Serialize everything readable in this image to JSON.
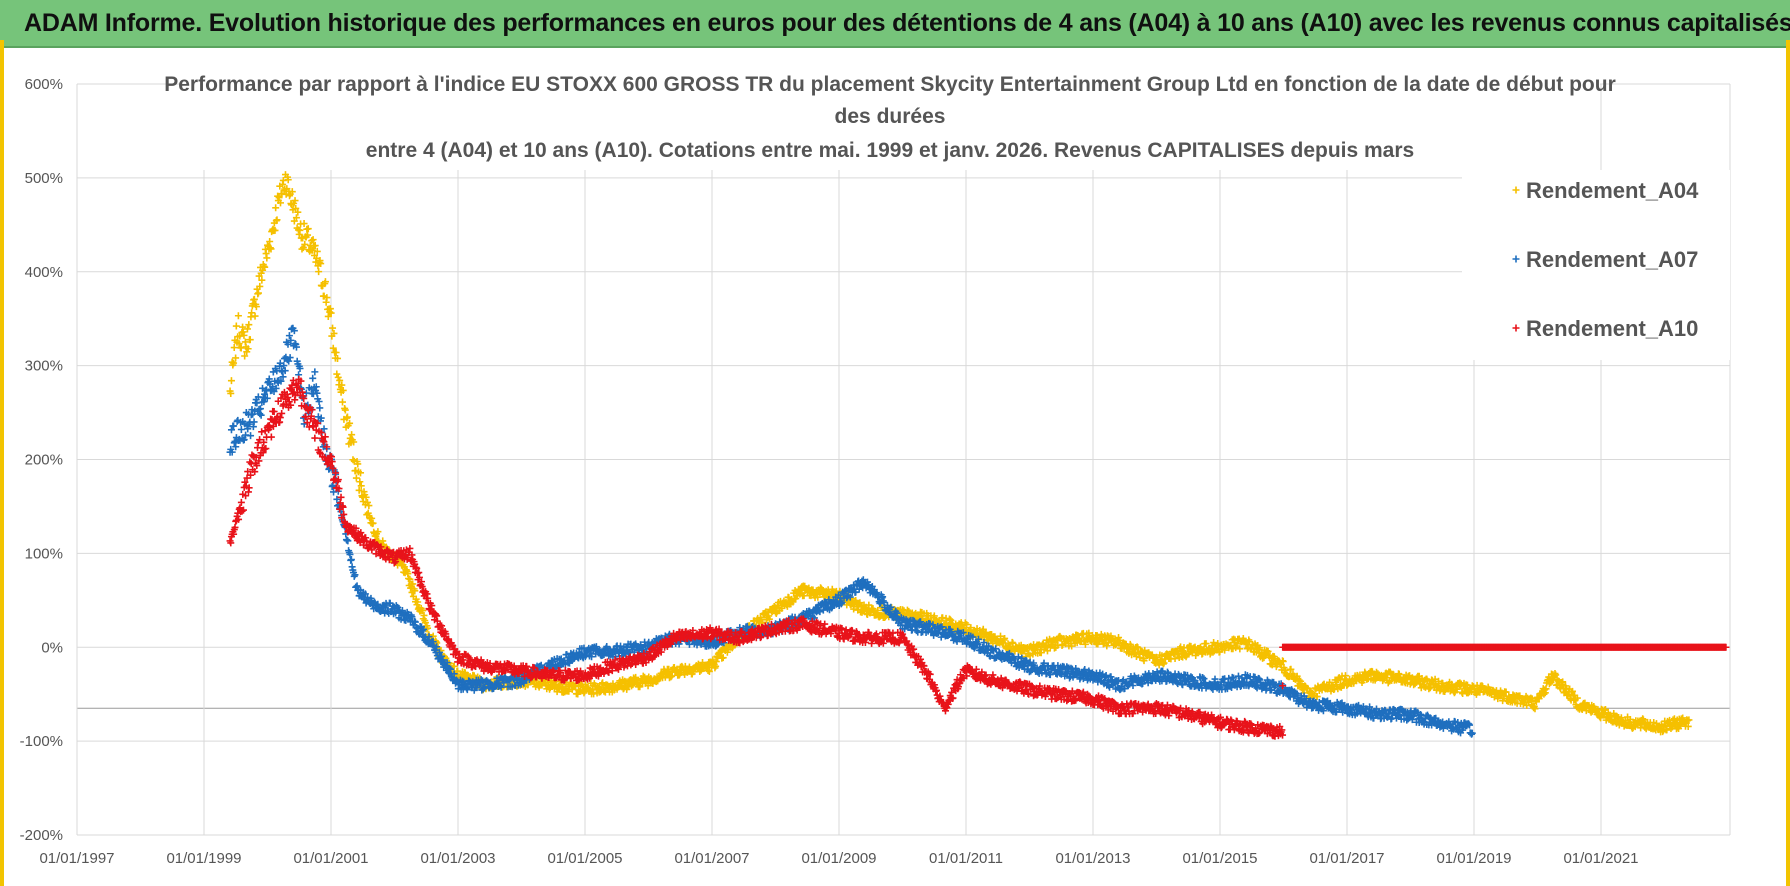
{
  "header": {
    "banner_title": "ADAM Informe. Evolution historique des performances en euros pour des détentions de 4 ans (A04) à 10 ans (A10) avec les revenus connus capitalisés"
  },
  "chart_data": {
    "type": "scatter",
    "title_lines": [
      "Performance par rapport à l'indice EU STOXX 600 GROSS TR  du placement Skycity Entertainment Group Ltd en fonction de la date de début pour",
      "des durées",
      "entre 4 (A04) et 10 ans (A10).  Cotations entre mai. 1999 et janv. 2026. Revenus CAPITALISES depuis mars"
    ],
    "xlabel": "",
    "ylabel": "",
    "x_axis": "date",
    "xlim": [
      "1997-01-01",
      "2022-12-31"
    ],
    "x_ticks": [
      "01/01/1997",
      "01/01/1999",
      "01/01/2001",
      "01/01/2003",
      "01/01/2005",
      "01/01/2007",
      "01/01/2009",
      "01/01/2011",
      "01/01/2013",
      "01/01/2015",
      "01/01/2017",
      "01/01/2019",
      "01/01/2021"
    ],
    "ylim": [
      -200,
      600
    ],
    "y_ticks": [
      "600%",
      "500%",
      "400%",
      "300%",
      "200%",
      "100%",
      "0%",
      "-100%",
      "-200%"
    ],
    "grid": true,
    "legend_position": "top-right",
    "series": [
      {
        "name": "Rendement_A04",
        "color": "#f5c000",
        "points": [
          [
            "1999-06-01",
            270
          ],
          [
            "1999-07-15",
            340
          ],
          [
            "1999-09-01",
            320
          ],
          [
            "1999-10-15",
            360
          ],
          [
            "1999-12-01",
            400
          ],
          [
            "2000-01-15",
            430
          ],
          [
            "2000-03-01",
            470
          ],
          [
            "2000-04-15",
            500
          ],
          [
            "2000-06-01",
            470
          ],
          [
            "2000-07-15",
            440
          ],
          [
            "2000-09-01",
            430
          ],
          [
            "2000-10-15",
            410
          ],
          [
            "2000-12-01",
            380
          ],
          [
            "2001-01-15",
            330
          ],
          [
            "2001-03-01",
            270
          ],
          [
            "2001-04-15",
            230
          ],
          [
            "2001-06-01",
            190
          ],
          [
            "2001-07-15",
            160
          ],
          [
            "2001-09-01",
            130
          ],
          [
            "2001-10-15",
            110
          ],
          [
            "2001-12-01",
            100
          ],
          [
            "2002-02-01",
            90
          ],
          [
            "2002-04-01",
            70
          ],
          [
            "2002-06-01",
            40
          ],
          [
            "2002-08-01",
            10
          ],
          [
            "2002-10-01",
            -10
          ],
          [
            "2003-01-01",
            -30
          ],
          [
            "2003-06-01",
            -40
          ],
          [
            "2004-01-01",
            -35
          ],
          [
            "2004-06-01",
            -40
          ],
          [
            "2005-01-01",
            -45
          ],
          [
            "2005-06-01",
            -42
          ],
          [
            "2006-01-01",
            -35
          ],
          [
            "2006-06-01",
            -25
          ],
          [
            "2007-01-01",
            -20
          ],
          [
            "2007-06-01",
            10
          ],
          [
            "2008-01-01",
            40
          ],
          [
            "2008-06-01",
            60
          ],
          [
            "2009-01-01",
            55
          ],
          [
            "2009-06-01",
            40
          ],
          [
            "2010-01-01",
            35
          ],
          [
            "2010-06-01",
            30
          ],
          [
            "2011-01-01",
            20
          ],
          [
            "2011-06-01",
            10
          ],
          [
            "2012-01-01",
            -5
          ],
          [
            "2012-06-01",
            5
          ],
          [
            "2013-01-01",
            10
          ],
          [
            "2013-06-01",
            5
          ],
          [
            "2014-01-01",
            -15
          ],
          [
            "2014-06-01",
            -5
          ],
          [
            "2015-01-01",
            0
          ],
          [
            "2015-06-01",
            5
          ],
          [
            "2016-01-01",
            -20
          ],
          [
            "2016-06-01",
            -50
          ],
          [
            "2017-01-01",
            -35
          ],
          [
            "2017-06-01",
            -30
          ],
          [
            "2018-01-01",
            -35
          ],
          [
            "2018-06-01",
            -40
          ],
          [
            "2019-01-01",
            -45
          ],
          [
            "2019-06-01",
            -50
          ],
          [
            "2020-01-01",
            -60
          ],
          [
            "2020-04-01",
            -30
          ],
          [
            "2020-09-01",
            -60
          ],
          [
            "2021-01-01",
            -70
          ],
          [
            "2021-06-01",
            -80
          ],
          [
            "2022-01-01",
            -85
          ],
          [
            "2022-06-01",
            -78
          ]
        ]
      },
      {
        "name": "Rendement_A07",
        "color": "#1f6fbf",
        "points": [
          [
            "1999-06-01",
            220
          ],
          [
            "1999-08-01",
            230
          ],
          [
            "1999-10-01",
            240
          ],
          [
            "1999-12-01",
            260
          ],
          [
            "2000-02-01",
            280
          ],
          [
            "2000-04-01",
            300
          ],
          [
            "2000-06-01",
            330
          ],
          [
            "2000-08-01",
            250
          ],
          [
            "2000-10-01",
            280
          ],
          [
            "2000-12-01",
            210
          ],
          [
            "2001-02-01",
            170
          ],
          [
            "2001-04-01",
            120
          ],
          [
            "2001-06-01",
            60
          ],
          [
            "2001-09-01",
            45
          ],
          [
            "2002-01-01",
            40
          ],
          [
            "2002-04-01",
            30
          ],
          [
            "2002-08-01",
            5
          ],
          [
            "2003-01-01",
            -40
          ],
          [
            "2003-06-01",
            -40
          ],
          [
            "2004-01-01",
            -35
          ],
          [
            "2004-06-01",
            -20
          ],
          [
            "2005-01-01",
            -5
          ],
          [
            "2005-06-01",
            -5
          ],
          [
            "2006-01-01",
            0
          ],
          [
            "2006-06-01",
            10
          ],
          [
            "2007-01-01",
            5
          ],
          [
            "2007-06-01",
            15
          ],
          [
            "2008-01-01",
            20
          ],
          [
            "2008-06-01",
            30
          ],
          [
            "2009-01-01",
            50
          ],
          [
            "2009-06-01",
            70
          ],
          [
            "2010-01-01",
            25
          ],
          [
            "2010-06-01",
            20
          ],
          [
            "2011-01-01",
            10
          ],
          [
            "2011-06-01",
            -5
          ],
          [
            "2012-01-01",
            -20
          ],
          [
            "2012-06-01",
            -25
          ],
          [
            "2013-01-01",
            -30
          ],
          [
            "2013-06-01",
            -40
          ],
          [
            "2014-01-01",
            -30
          ],
          [
            "2014-06-01",
            -35
          ],
          [
            "2015-01-01",
            -40
          ],
          [
            "2015-06-01",
            -35
          ],
          [
            "2016-01-01",
            -45
          ],
          [
            "2016-06-01",
            -60
          ],
          [
            "2017-01-01",
            -65
          ],
          [
            "2017-06-01",
            -70
          ],
          [
            "2018-01-01",
            -72
          ],
          [
            "2018-06-01",
            -80
          ],
          [
            "2019-01-01",
            -88
          ]
        ]
      },
      {
        "name": "Rendement_A10",
        "color": "#e8131a",
        "points": [
          [
            "1999-06-01",
            110
          ],
          [
            "1999-08-01",
            150
          ],
          [
            "1999-10-01",
            190
          ],
          [
            "2000-01-01",
            230
          ],
          [
            "2000-04-01",
            260
          ],
          [
            "2000-07-01",
            280
          ],
          [
            "2000-10-01",
            230
          ],
          [
            "2001-01-01",
            200
          ],
          [
            "2001-04-01",
            130
          ],
          [
            "2001-08-01",
            110
          ],
          [
            "2002-01-01",
            95
          ],
          [
            "2002-04-01",
            100
          ],
          [
            "2002-08-01",
            40
          ],
          [
            "2003-01-01",
            -10
          ],
          [
            "2003-06-01",
            -20
          ],
          [
            "2004-01-01",
            -25
          ],
          [
            "2004-06-01",
            -30
          ],
          [
            "2005-01-01",
            -30
          ],
          [
            "2005-06-01",
            -20
          ],
          [
            "2006-01-01",
            -10
          ],
          [
            "2006-06-01",
            10
          ],
          [
            "2007-01-01",
            15
          ],
          [
            "2007-06-01",
            10
          ],
          [
            "2008-01-01",
            20
          ],
          [
            "2008-06-01",
            25
          ],
          [
            "2009-01-01",
            15
          ],
          [
            "2009-06-01",
            10
          ],
          [
            "2010-01-01",
            10
          ],
          [
            "2010-06-01",
            -30
          ],
          [
            "2010-09-01",
            -65
          ],
          [
            "2011-01-01",
            -25
          ],
          [
            "2011-06-01",
            -35
          ],
          [
            "2012-01-01",
            -45
          ],
          [
            "2012-06-01",
            -50
          ],
          [
            "2013-01-01",
            -55
          ],
          [
            "2013-06-01",
            -65
          ],
          [
            "2014-01-01",
            -65
          ],
          [
            "2014-06-01",
            -70
          ],
          [
            "2015-01-01",
            -80
          ],
          [
            "2015-06-01",
            -85
          ],
          [
            "2016-01-01",
            -90
          ],
          [
            "2016-01-02",
            0
          ],
          [
            "2017-01-01",
            0
          ],
          [
            "2018-01-01",
            0
          ],
          [
            "2019-01-01",
            0
          ],
          [
            "2020-01-01",
            0
          ],
          [
            "2021-01-01",
            0
          ],
          [
            "2022-01-01",
            0
          ],
          [
            "2022-12-31",
            0
          ]
        ]
      }
    ]
  }
}
